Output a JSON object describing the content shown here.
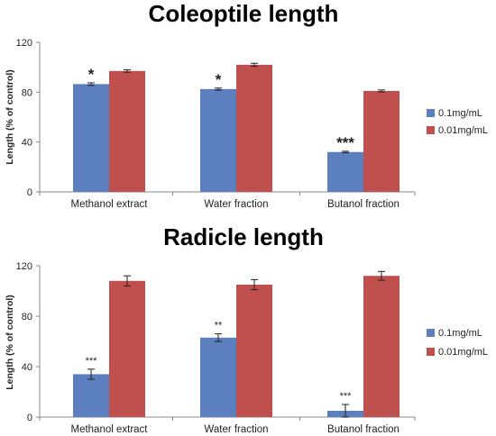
{
  "chart_data": [
    {
      "type": "bar",
      "title": "Coleoptile length",
      "ylabel": "Length (% of control)",
      "xlabel": "",
      "ylim": [
        0,
        120
      ],
      "yticks": [
        "0",
        "40",
        "80",
        "120"
      ],
      "categories": [
        "Methanol extract",
        "Water fraction",
        "Butanol fraction"
      ],
      "series": [
        {
          "name": "0.1mg/mL",
          "color": "#5b7fbf",
          "values": [
            86.5,
            82.5,
            32
          ],
          "errors": [
            1,
            0.8,
            0.6
          ]
        },
        {
          "name": "0.01mg/mL",
          "color": "#c0504d",
          "values": [
            97,
            102,
            81
          ],
          "errors": [
            1,
            1.2,
            0.8
          ]
        }
      ],
      "annotations": [
        {
          "category": 0,
          "series": 0,
          "text": "*"
        },
        {
          "category": 1,
          "series": 0,
          "text": "*"
        },
        {
          "category": 2,
          "series": 0,
          "text": "***"
        }
      ],
      "legend": "right",
      "grid": false
    },
    {
      "type": "bar",
      "title": "Radicle length",
      "ylabel": "Length (% of control)",
      "xlabel": "",
      "ylim": [
        0,
        120
      ],
      "yticks": [
        "0",
        "40",
        "80",
        "120"
      ],
      "categories": [
        "Methanol extract",
        "Water fraction",
        "Butanol fraction"
      ],
      "series": [
        {
          "name": "0.1mg/mL",
          "color": "#5b7fbf",
          "values": [
            34,
            63,
            5
          ],
          "errors": [
            4,
            3,
            5
          ]
        },
        {
          "name": "0.01mg/mL",
          "color": "#c0504d",
          "values": [
            108,
            105,
            112
          ],
          "errors": [
            4,
            4,
            3.5
          ]
        }
      ],
      "annotations": [
        {
          "category": 0,
          "series": 0,
          "text": "***"
        },
        {
          "category": 1,
          "series": 0,
          "text": "**"
        },
        {
          "category": 2,
          "series": 0,
          "text": "***"
        }
      ],
      "legend": "right",
      "grid": false
    }
  ]
}
